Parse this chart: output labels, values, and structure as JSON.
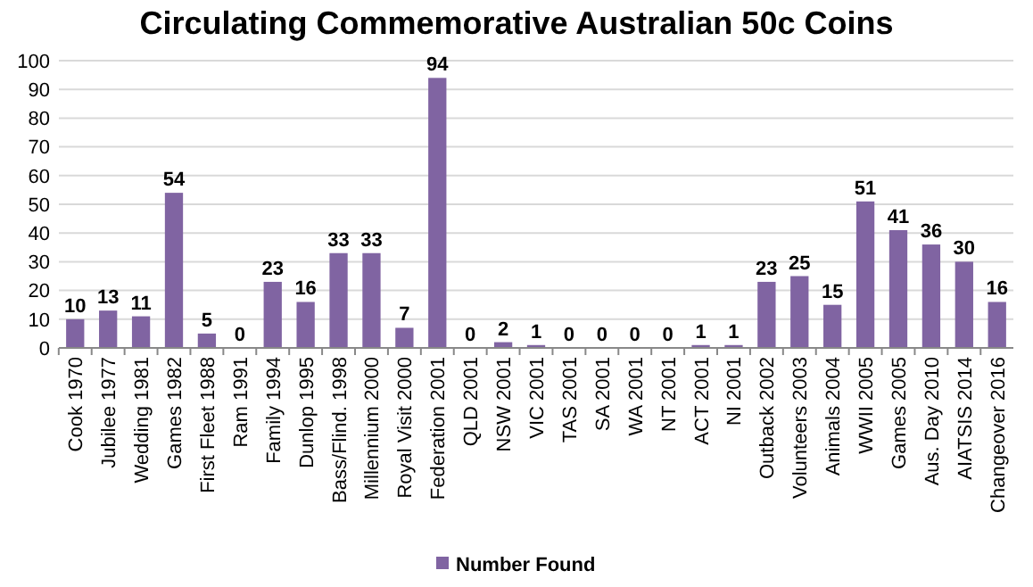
{
  "chart_data": {
    "type": "bar",
    "title": "Circulating Commemorative Australian 50c Coins",
    "categories": [
      "Cook 1970",
      "Jubilee 1977",
      "Wedding 1981",
      "Games 1982",
      "First Fleet 1988",
      "Ram 1991",
      "Family 1994",
      "Dunlop 1995",
      "Bass/Flind. 1998",
      "Millennium 2000",
      "Royal Visit 2000",
      "Federation 2001",
      "QLD 2001",
      "NSW 2001",
      "VIC 2001",
      "TAS 2001",
      "SA 2001",
      "WA 2001",
      "NT 2001",
      "ACT 2001",
      "NI 2001",
      "Outback 2002",
      "Volunteers 2003",
      "Animals 2004",
      "WWII 2005",
      "Games 2005",
      "Aus. Day 2010",
      "AIATSIS 2014",
      "Changeover 2016"
    ],
    "series": [
      {
        "name": "Number Found",
        "color": "#8064a2",
        "values": [
          10,
          13,
          11,
          54,
          5,
          0,
          23,
          16,
          33,
          33,
          7,
          94,
          0,
          2,
          1,
          0,
          0,
          0,
          0,
          1,
          1,
          23,
          25,
          15,
          51,
          41,
          36,
          30,
          16
        ]
      }
    ],
    "ylim": [
      0,
      100
    ],
    "yticks": [
      0,
      10,
      20,
      30,
      40,
      50,
      60,
      70,
      80,
      90,
      100
    ],
    "grid": "y",
    "data_labels": true,
    "legend": "bottom"
  }
}
